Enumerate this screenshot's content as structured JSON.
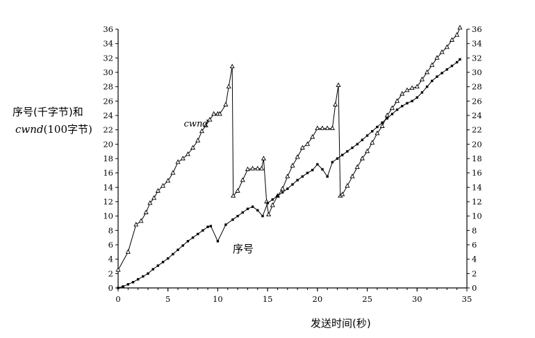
{
  "chart_data": {
    "type": "line",
    "ylabel_line1": "序号(千字节)和",
    "ylabel_line2_italic": "cwnd",
    "ylabel_line2_rest": "(100字节)",
    "xlabel": "发送时间(秒)",
    "xlim": [
      0,
      35
    ],
    "ylim": [
      0,
      36
    ],
    "x_ticks": [
      0,
      5,
      10,
      15,
      20,
      25,
      30,
      35
    ],
    "y_ticks": [
      0,
      2,
      4,
      6,
      8,
      10,
      12,
      14,
      16,
      18,
      20,
      22,
      24,
      26,
      28,
      30,
      32,
      34,
      36
    ],
    "grid": false,
    "series": [
      {
        "name": "cwnd",
        "marker": "triangle",
        "x": [
          0.0,
          1.0,
          1.8,
          2.3,
          2.8,
          3.2,
          3.6,
          4.0,
          4.5,
          5.0,
          5.5,
          6.0,
          6.5,
          7.0,
          7.5,
          8.0,
          8.4,
          8.8,
          9.2,
          9.6,
          10.0,
          10.2,
          10.8,
          11.1,
          11.45,
          11.55,
          12.0,
          12.5,
          13.0,
          13.5,
          14.0,
          14.4,
          14.6,
          14.9,
          15.1,
          15.5,
          16.0,
          16.5,
          17.0,
          17.5,
          18.0,
          18.5,
          19.0,
          19.5,
          20.0,
          20.5,
          21.0,
          21.5,
          21.8,
          22.1,
          22.3,
          22.5,
          23.0,
          23.5,
          24.0,
          24.5,
          25.0,
          25.5,
          26.0,
          26.5,
          27.0,
          27.5,
          28.0,
          28.5,
          29.0,
          29.5,
          30.0,
          30.5,
          31.0,
          31.5,
          32.0,
          32.5,
          33.0,
          33.5,
          34.0,
          34.3
        ],
        "y": [
          2.5,
          5.0,
          8.8,
          9.3,
          10.5,
          11.8,
          12.5,
          13.5,
          14.2,
          14.9,
          16.0,
          17.5,
          18.0,
          18.6,
          19.5,
          20.5,
          21.8,
          22.6,
          23.4,
          24.2,
          24.2,
          24.2,
          25.5,
          28.0,
          30.8,
          12.8,
          13.5,
          15.0,
          16.5,
          16.6,
          16.6,
          16.6,
          18.0,
          12.0,
          10.2,
          11.5,
          12.8,
          13.8,
          15.5,
          17.0,
          18.2,
          19.5,
          20.0,
          21.0,
          22.2,
          22.2,
          22.2,
          22.2,
          25.5,
          28.2,
          12.8,
          13.0,
          14.2,
          15.5,
          16.8,
          18.0,
          19.0,
          20.2,
          21.5,
          22.5,
          24.0,
          25.0,
          26.0,
          27.0,
          27.5,
          27.8,
          28.0,
          29.0,
          30.0,
          31.0,
          32.0,
          32.8,
          33.5,
          34.5,
          35.2,
          36.2
        ]
      },
      {
        "name": "序号",
        "marker": "square",
        "x": [
          0.0,
          0.5,
          1.0,
          1.5,
          2.0,
          2.5,
          3.0,
          3.5,
          4.0,
          4.5,
          5.0,
          5.5,
          6.0,
          6.5,
          7.0,
          7.5,
          8.0,
          8.5,
          9.0,
          9.3,
          10.0,
          10.8,
          11.5,
          12.0,
          12.5,
          13.0,
          13.5,
          14.0,
          14.5,
          15.0,
          15.5,
          16.0,
          16.5,
          17.0,
          17.5,
          18.0,
          18.5,
          19.0,
          19.5,
          20.0,
          20.5,
          21.0,
          21.5,
          22.0,
          22.5,
          23.0,
          23.5,
          24.0,
          24.5,
          25.0,
          25.5,
          26.0,
          26.5,
          27.0,
          27.5,
          28.0,
          28.5,
          29.0,
          29.5,
          30.0,
          30.5,
          31.0,
          31.5,
          32.0,
          32.5,
          33.0,
          33.5,
          34.0,
          34.3
        ],
        "y": [
          0.0,
          0.2,
          0.5,
          0.8,
          1.2,
          1.6,
          2.0,
          2.6,
          3.1,
          3.6,
          4.1,
          4.7,
          5.3,
          5.9,
          6.5,
          7.0,
          7.5,
          8.0,
          8.5,
          8.6,
          6.5,
          8.8,
          9.5,
          10.0,
          10.5,
          11.0,
          11.3,
          10.8,
          10.0,
          11.8,
          12.3,
          12.8,
          13.3,
          13.8,
          14.4,
          15.0,
          15.5,
          16.0,
          16.4,
          17.2,
          16.5,
          15.5,
          17.5,
          18.0,
          18.5,
          19.0,
          19.5,
          20.0,
          20.6,
          21.2,
          21.8,
          22.4,
          23.0,
          23.6,
          24.2,
          24.8,
          25.3,
          25.7,
          26.0,
          26.5,
          27.2,
          28.0,
          28.8,
          29.4,
          29.9,
          30.4,
          30.9,
          31.4,
          31.8
        ]
      }
    ],
    "annotations": [
      {
        "text": "cwnd",
        "italic": true,
        "x": 6.6,
        "y": 22.6
      },
      {
        "text": "序号",
        "italic": false,
        "x": 11.5,
        "y": 5.6
      }
    ]
  }
}
